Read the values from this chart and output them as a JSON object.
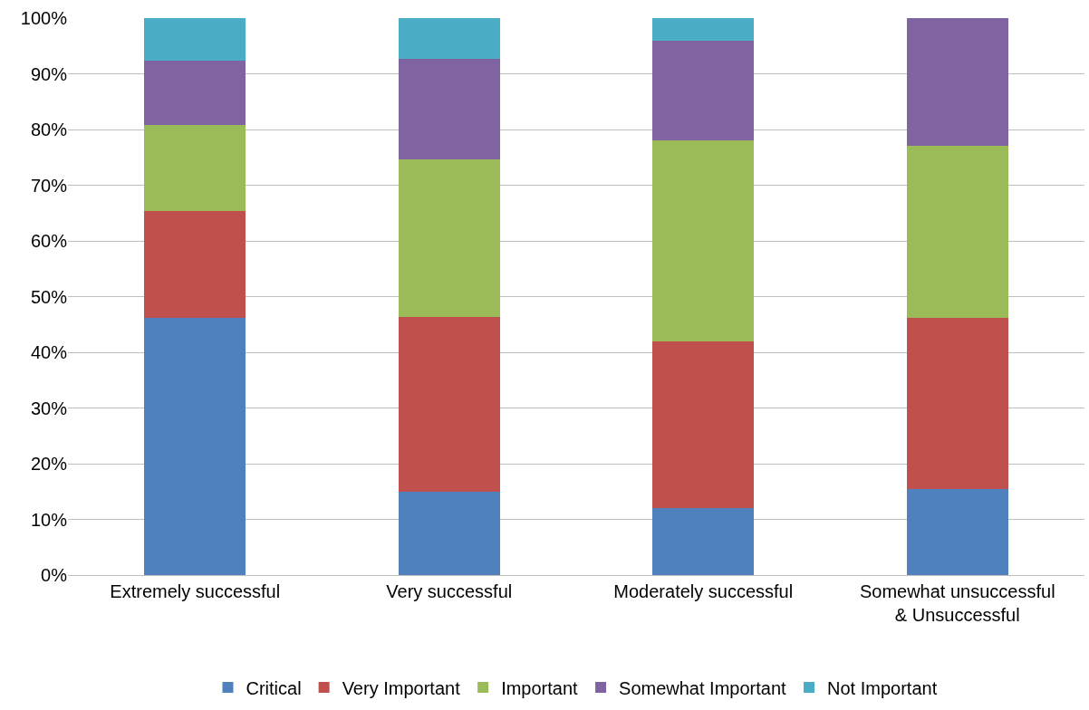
{
  "chart_data": {
    "type": "bar",
    "stacked": true,
    "categories": [
      "Extremely successful",
      "Very successful",
      "Moderately successful",
      "Somewhat unsuccessful\n& Unsuccessful"
    ],
    "series": [
      {
        "name": "Critical",
        "color": "#4f81bd",
        "values": [
          46.2,
          15.0,
          12.1,
          15.4
        ]
      },
      {
        "name": "Very Important",
        "color": "#c0504d",
        "values": [
          19.2,
          31.3,
          29.9,
          30.8
        ]
      },
      {
        "name": "Important",
        "color": "#9bbb59",
        "values": [
          15.4,
          28.3,
          36.1,
          30.8
        ]
      },
      {
        "name": "Somewhat Important",
        "color": "#8064a2",
        "values": [
          11.5,
          18.1,
          17.9,
          23.0
        ]
      },
      {
        "name": "Not Important",
        "color": "#4bacc6",
        "values": [
          7.7,
          7.3,
          4.0,
          0
        ]
      }
    ],
    "ylim": [
      0,
      100
    ],
    "yticks": [
      {
        "value": 0,
        "label": "0%"
      },
      {
        "value": 10,
        "label": "10%"
      },
      {
        "value": 20,
        "label": "20%"
      },
      {
        "value": 30,
        "label": "30%"
      },
      {
        "value": 40,
        "label": "40%"
      },
      {
        "value": 50,
        "label": "50%"
      },
      {
        "value": 60,
        "label": "60%"
      },
      {
        "value": 70,
        "label": "70%"
      },
      {
        "value": 80,
        "label": "80%"
      },
      {
        "value": 90,
        "label": "90%"
      },
      {
        "value": 100,
        "label": "100%"
      }
    ],
    "grid": "y",
    "legend": "bottom"
  }
}
